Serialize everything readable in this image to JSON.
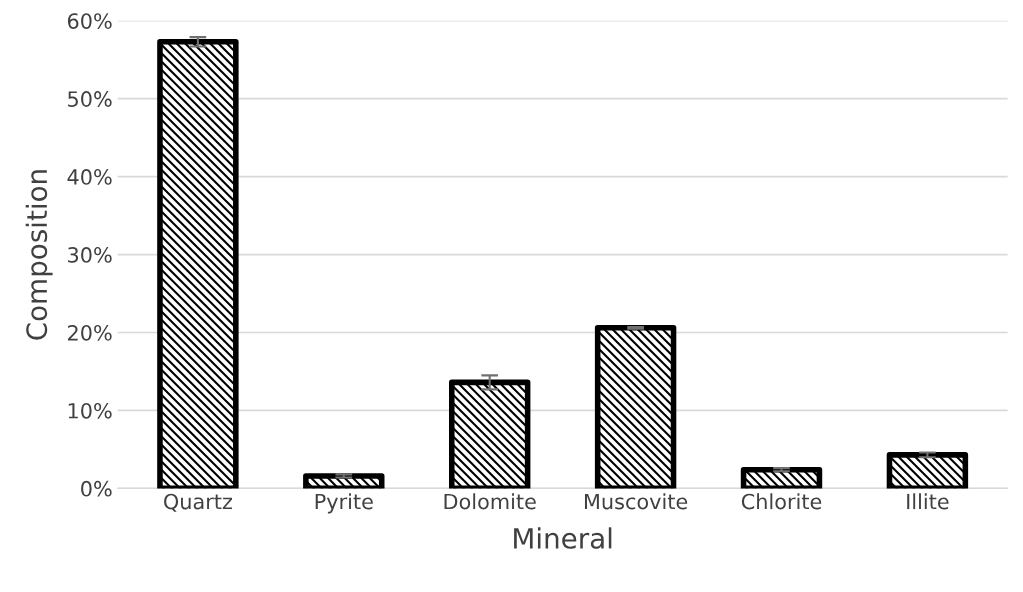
{
  "chart_data": {
    "type": "bar",
    "xlabel": "Mineral",
    "ylabel": "Composition",
    "categories": [
      "Quartz",
      "Pyrite",
      "Dolomite",
      "Muscovite",
      "Chlorite",
      "Illite"
    ],
    "values": [
      57.3,
      1.6,
      13.6,
      20.6,
      2.4,
      4.3
    ],
    "errors": [
      0.6,
      0.2,
      0.9,
      0.1,
      0.2,
      0.3
    ],
    "color": "#000000",
    "ylim": [
      0,
      60
    ],
    "yticks": [
      {
        "value": 0,
        "label": "0%"
      },
      {
        "value": 10,
        "label": "10%"
      },
      {
        "value": 20,
        "label": "20%"
      },
      {
        "value": 30,
        "label": "30%"
      },
      {
        "value": 40,
        "label": "40%"
      },
      {
        "value": 50,
        "label": "50%"
      },
      {
        "value": 60,
        "label": "60%"
      }
    ],
    "grid": "y"
  }
}
